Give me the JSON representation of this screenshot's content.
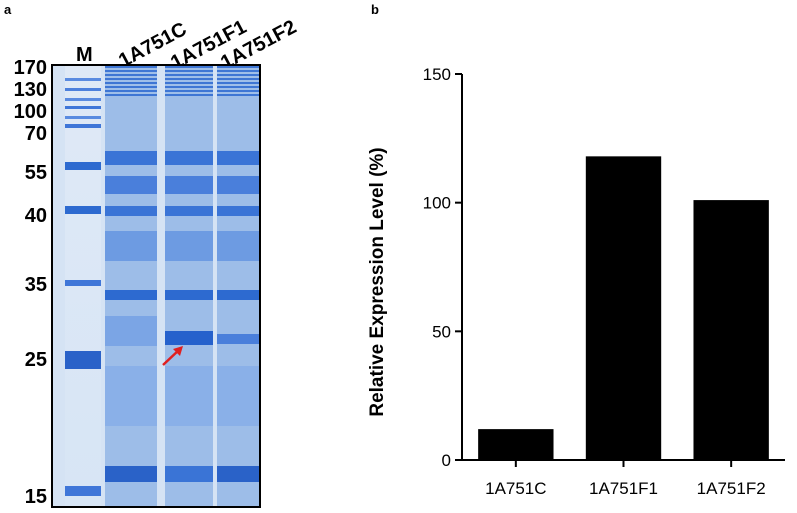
{
  "figure": {
    "panel_a": {
      "letter": "a",
      "lanes": [
        "M",
        "1A751C",
        "1A751F1",
        "1A751F2"
      ],
      "marker_sizes": [
        "170",
        "130",
        "100",
        "70",
        "55",
        "40",
        "35",
        "25",
        "15"
      ],
      "arrow_color": "#e02020"
    },
    "panel_b": {
      "letter": "b"
    }
  },
  "chart_data": {
    "type": "bar",
    "categories": [
      "1A751C",
      "1A751F1",
      "1A751F2"
    ],
    "values": [
      12,
      118,
      101
    ],
    "ylabel": "Relative Expression Level (%)",
    "xlabel": "",
    "ylim": [
      0,
      150
    ],
    "yticks": [
      0,
      50,
      100,
      150
    ],
    "bar_color": "#000000",
    "grid": false
  }
}
